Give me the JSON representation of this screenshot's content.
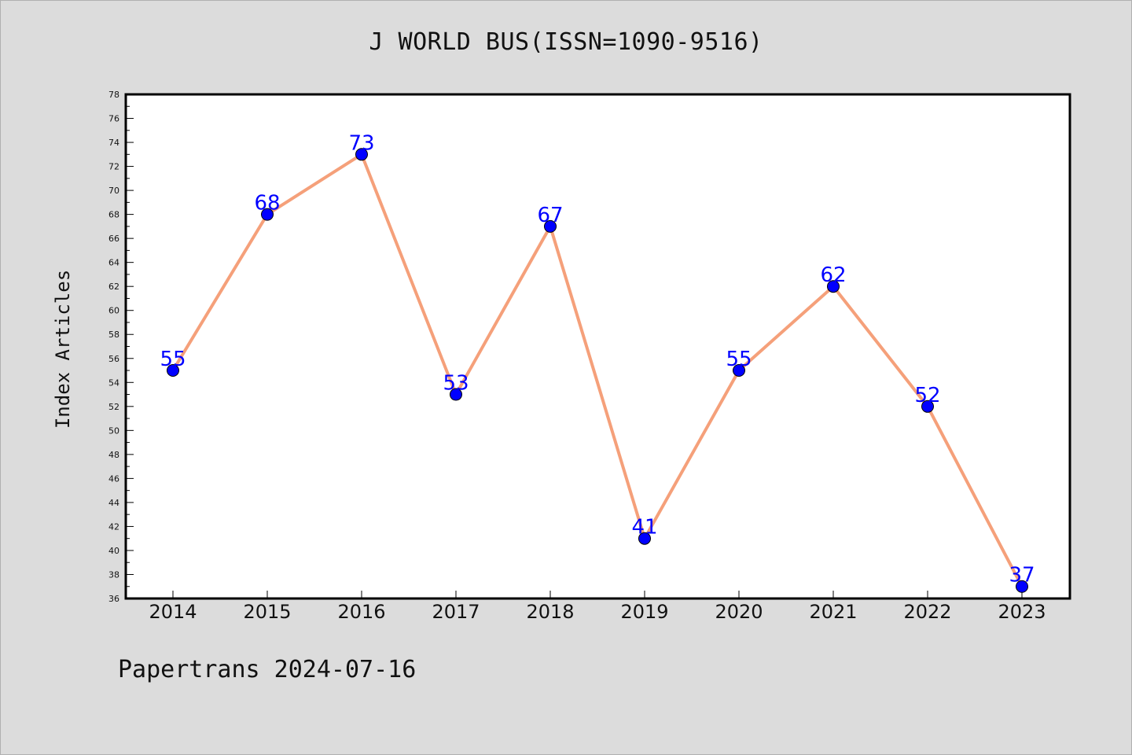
{
  "chart_data": {
    "type": "line",
    "title": "J WORLD BUS(ISSN=1090-9516)",
    "xlabel": "",
    "ylabel": "Index Articles",
    "categories": [
      "2014",
      "2015",
      "2016",
      "2017",
      "2018",
      "2019",
      "2020",
      "2021",
      "2022",
      "2023"
    ],
    "series": [
      {
        "values": [
          55,
          68,
          73,
          53,
          67,
          41,
          55,
          62,
          52,
          37
        ],
        "line_color": "#f5a07a",
        "marker_color": "#0000ff"
      }
    ],
    "ylim": [
      36,
      78
    ],
    "yticks": [
      "36",
      "38",
      "40",
      "42",
      "44",
      "46",
      "48",
      "50",
      "52",
      "54",
      "56",
      "58",
      "60",
      "62",
      "64",
      "66",
      "68",
      "70",
      "72",
      "74",
      "76",
      "78"
    ],
    "grid": false,
    "data_labels": true
  },
  "footer": "Papertrans 2024-07-16"
}
